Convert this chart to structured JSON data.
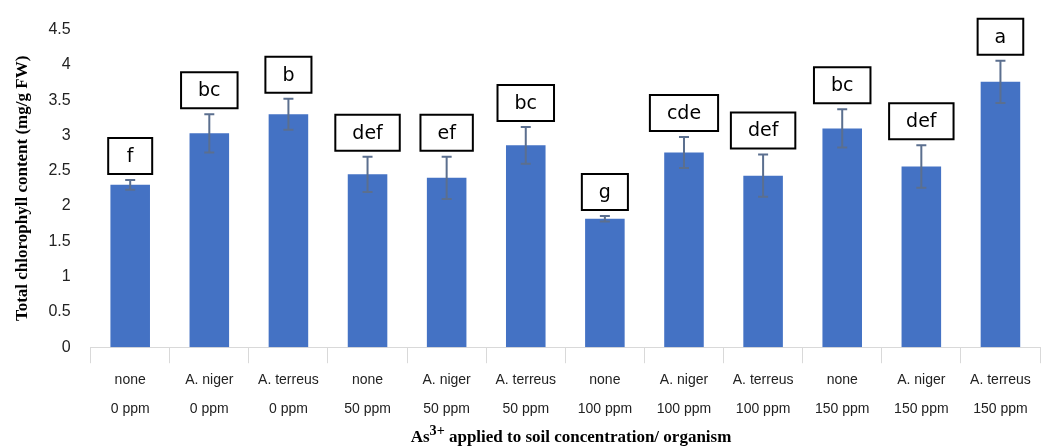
{
  "chart_data": {
    "type": "bar",
    "xlabel": "As$^{3+}$ applied to soil concentration/ organism",
    "ylabel": "Total chlorophyll content (mg/g FW)",
    "categories": [
      "none\n0 ppm",
      "A. niger\n0 ppm",
      "A. terreus\n0 ppm",
      "none\n50 ppm",
      "A. niger\n50 ppm",
      "A. terreus\n50 ppm",
      "none\n100 ppm",
      "A. niger\n100 ppm",
      "A. terreus\n100 ppm",
      "none\n150 ppm",
      "A. niger\n150 ppm",
      "A. terreus\n150 ppm"
    ],
    "values": [
      2.3,
      3.03,
      3.3,
      2.45,
      2.4,
      2.86,
      1.82,
      2.76,
      2.43,
      3.1,
      2.56,
      3.76
    ],
    "errors": [
      0.07,
      0.27,
      0.22,
      0.25,
      0.3,
      0.26,
      0.04,
      0.22,
      0.3,
      0.27,
      0.3,
      0.3
    ],
    "value_labels": [
      "f",
      "bc",
      "b",
      "def",
      "ef",
      "bc",
      "g",
      "cde",
      "def",
      "bc",
      "def",
      "a"
    ],
    "color": "#4472c4",
    "ylim": [
      0,
      4.5
    ],
    "yticks": [
      0,
      0.5,
      1,
      1.5,
      2,
      2.5,
      3,
      3.5,
      4,
      4.5
    ],
    "grid": false,
    "legend": false
  }
}
